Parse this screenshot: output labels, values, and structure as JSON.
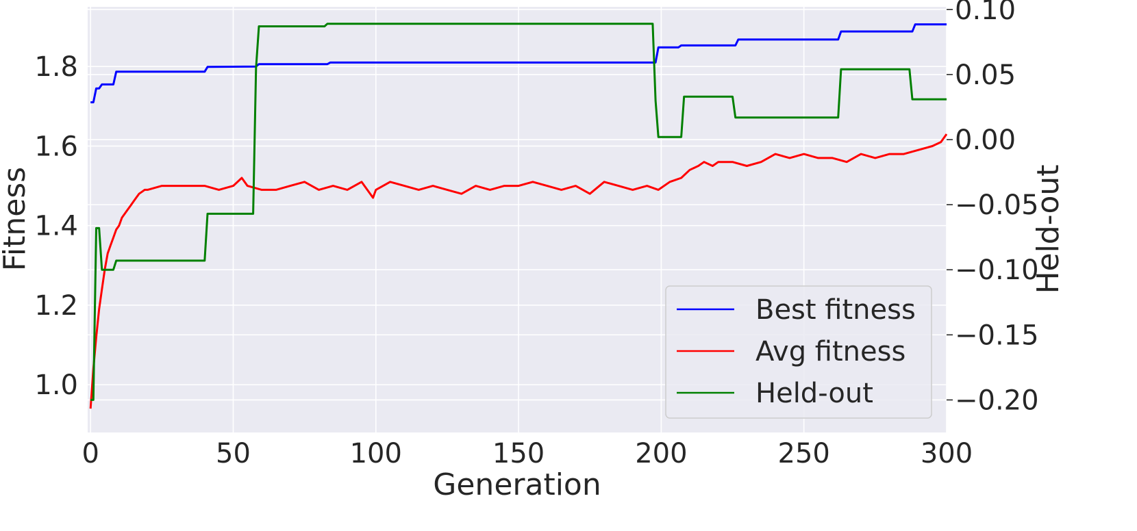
{
  "chart_data": {
    "type": "line",
    "title": "",
    "xlabel": "Generation",
    "ylabel": "Fitness",
    "y2label": "Held-out",
    "xlim": [
      -1,
      300
    ],
    "ylim": [
      0.88,
      1.95
    ],
    "y2lim": [
      -0.225,
      0.102
    ],
    "xticks": [
      0,
      50,
      100,
      150,
      200,
      250,
      300
    ],
    "yticks": [
      1.0,
      1.2,
      1.4,
      1.6,
      1.8
    ],
    "y2ticks": [
      -0.2,
      -0.15,
      -0.1,
      -0.05,
      0.0,
      0.05,
      0.1
    ],
    "xtick_labels": [
      "0",
      "50",
      "100",
      "150",
      "200",
      "250",
      "300"
    ],
    "ytick_labels": [
      "1.0",
      "1.2",
      "1.4",
      "1.6",
      "1.8"
    ],
    "y2tick_labels": [
      "−0.20",
      "−0.15",
      "−0.10",
      "−0.05",
      "0.00",
      "0.05",
      "0.10"
    ],
    "grid": true,
    "legend_position": "bottom-right",
    "series": [
      {
        "name": "Best fitness",
        "color": "#0000ff",
        "axis": "left",
        "x": [
          0,
          1,
          2,
          3,
          4,
          5,
          8,
          9,
          40,
          41,
          58,
          59,
          83,
          84,
          198,
          199,
          206,
          207,
          226,
          227,
          262,
          263,
          288,
          289,
          300
        ],
        "y": [
          1.71,
          1.71,
          1.745,
          1.745,
          1.755,
          1.755,
          1.755,
          1.787,
          1.787,
          1.799,
          1.8,
          1.806,
          1.806,
          1.81,
          1.81,
          1.848,
          1.848,
          1.853,
          1.853,
          1.868,
          1.868,
          1.888,
          1.888,
          1.906,
          1.906
        ]
      },
      {
        "name": "Avg fitness",
        "color": "#ff0000",
        "axis": "left",
        "x": [
          0,
          1,
          2,
          3,
          4,
          5,
          6,
          7,
          8,
          9,
          10,
          11,
          12,
          13,
          14,
          15,
          16,
          17,
          18,
          19,
          20,
          25,
          30,
          35,
          40,
          45,
          50,
          53,
          55,
          60,
          65,
          70,
          75,
          80,
          85,
          90,
          95,
          99,
          100,
          105,
          110,
          115,
          120,
          125,
          130,
          135,
          140,
          145,
          150,
          155,
          160,
          165,
          170,
          175,
          180,
          185,
          190,
          195,
          199,
          203,
          207,
          210,
          213,
          215,
          218,
          220,
          225,
          230,
          235,
          240,
          245,
          250,
          255,
          260,
          265,
          270,
          275,
          280,
          285,
          290,
          295,
          298,
          300
        ],
        "y": [
          0.94,
          1.04,
          1.12,
          1.19,
          1.24,
          1.29,
          1.33,
          1.35,
          1.37,
          1.39,
          1.4,
          1.42,
          1.43,
          1.44,
          1.45,
          1.46,
          1.47,
          1.48,
          1.485,
          1.49,
          1.49,
          1.5,
          1.5,
          1.5,
          1.5,
          1.49,
          1.5,
          1.52,
          1.5,
          1.49,
          1.49,
          1.5,
          1.51,
          1.49,
          1.5,
          1.49,
          1.51,
          1.47,
          1.49,
          1.51,
          1.5,
          1.49,
          1.5,
          1.49,
          1.48,
          1.5,
          1.49,
          1.5,
          1.5,
          1.51,
          1.5,
          1.49,
          1.5,
          1.48,
          1.51,
          1.5,
          1.49,
          1.5,
          1.49,
          1.51,
          1.52,
          1.54,
          1.55,
          1.56,
          1.55,
          1.56,
          1.56,
          1.55,
          1.56,
          1.58,
          1.57,
          1.58,
          1.57,
          1.57,
          1.56,
          1.58,
          1.57,
          1.58,
          1.58,
          1.59,
          1.6,
          1.61,
          1.63
        ]
      },
      {
        "name": "Held-out",
        "color": "#008000",
        "axis": "right",
        "x": [
          0,
          1,
          2,
          3,
          4,
          5,
          8,
          9,
          40,
          41,
          57,
          58,
          59,
          82,
          83,
          197,
          198,
          199,
          207,
          208,
          225,
          226,
          262,
          263,
          287,
          288,
          300
        ],
        "y": [
          -0.2,
          -0.2,
          -0.068,
          -0.068,
          -0.1,
          -0.1,
          -0.1,
          -0.093,
          -0.093,
          -0.057,
          -0.057,
          0.055,
          0.087,
          0.087,
          0.089,
          0.089,
          0.03,
          0.002,
          0.002,
          0.033,
          0.033,
          0.017,
          0.017,
          0.054,
          0.054,
          0.031,
          0.031
        ]
      }
    ]
  }
}
